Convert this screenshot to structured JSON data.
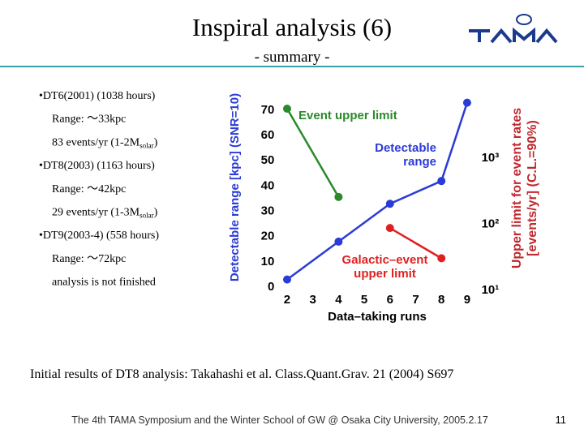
{
  "slide": {
    "title": "Inspiral analysis (6)",
    "subtitle": "- summary -",
    "bullets": [
      {
        "text": "•DT6(2001) (1038 hours)"
      },
      {
        "text": "Range: ～33kpc"
      },
      {
        "text": "83 events/yr (1-2M",
        "sub": "solar",
        "tail": ")"
      },
      {
        "text": "•DT8(2003) (1163 hours)"
      },
      {
        "text": "Range: ～42kpc"
      },
      {
        "text": "29 events/yr (1-3M",
        "sub": "solar",
        "tail": ")"
      },
      {
        "text": "•DT9(2003-4) (558 hours)"
      },
      {
        "text": "Range: ～72kpc"
      },
      {
        "text": "analysis is not finished"
      }
    ],
    "reference": "Initial results of DT8 analysis: Takahashi et al. Class.Quant.Grav. 21 (2004) S697",
    "footer": "The 4th TAMA Symposium and the Winter School of GW @ Osaka City University, 2005.2.17",
    "page": "11"
  },
  "chart_data": {
    "type": "line",
    "x_label": "Data–taking runs",
    "y_label": "Detectable range [kpc] (SNR=10)",
    "y2_label": "Upper limit for event rates [events/yr] (C.L.=90%)",
    "xlim": [
      1.6,
      9.4
    ],
    "xticks": [
      2,
      3,
      4,
      5,
      6,
      7,
      8,
      9
    ],
    "ylim": [
      -2,
      75
    ],
    "yticks": [
      0,
      10,
      20,
      30,
      40,
      50,
      60,
      70
    ],
    "y2lim": [
      8.9,
      7780
    ],
    "y2_log": true,
    "y2ticks": [
      {
        "value": 10,
        "label": "10¹"
      },
      {
        "value": 100,
        "label": "10²"
      },
      {
        "value": 1000,
        "label": "10³"
      }
    ],
    "series": [
      {
        "name": "Event upper limit",
        "color": "#2a8a2a",
        "axis": "y2",
        "x": [
          2,
          4
        ],
        "values": [
          5300,
          245
        ]
      },
      {
        "name": "Detectable range",
        "color": "#2b3bd6",
        "x": [
          2,
          4,
          6,
          8,
          9
        ],
        "values": [
          3,
          18,
          33,
          42,
          73
        ]
      },
      {
        "name": "Galactic–event upper limit",
        "color": "#e02020",
        "axis": "y2",
        "x": [
          6,
          8
        ],
        "values": [
          83,
          29
        ]
      }
    ]
  }
}
